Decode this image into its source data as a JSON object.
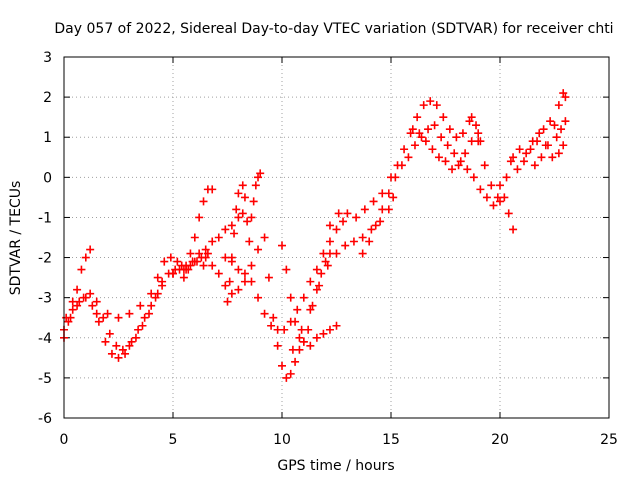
{
  "chart_data": {
    "type": "scatter",
    "title": "Day 057 of 2022, Sidereal Day-to-day VTEC variation (SDTVAR) for receiver chti",
    "xlabel": "GPS time / hours",
    "ylabel": "SDTVAR / TECUs",
    "xlim": [
      0,
      25
    ],
    "ylim": [
      -6,
      3
    ],
    "xticks": [
      "0",
      "5",
      "10",
      "15",
      "20",
      "25"
    ],
    "yticks": [
      "-6",
      "-5",
      "-4",
      "-3",
      "-2",
      "-1",
      "0",
      "1",
      "2",
      "3"
    ],
    "grid": true,
    "legend": "none",
    "marker": "+",
    "series": [
      {
        "color": "#ff0000",
        "points": [
          [
            0.0,
            -4.0
          ],
          [
            0.2,
            -3.6
          ],
          [
            0.4,
            -3.1
          ],
          [
            0.6,
            -2.8
          ],
          [
            0.8,
            -2.3
          ],
          [
            1.0,
            -2.0
          ],
          [
            1.2,
            -1.8
          ],
          [
            0.0,
            -3.8
          ],
          [
            0.3,
            -3.5
          ],
          [
            0.6,
            -3.2
          ],
          [
            0.9,
            -3.0
          ],
          [
            1.2,
            -2.9
          ],
          [
            1.5,
            -3.1
          ],
          [
            1.8,
            -3.5
          ],
          [
            2.1,
            -3.9
          ],
          [
            2.4,
            -4.2
          ],
          [
            2.7,
            -4.3
          ],
          [
            3.0,
            -4.2
          ],
          [
            3.3,
            -4.0
          ],
          [
            3.6,
            -3.7
          ],
          [
            3.9,
            -3.4
          ],
          [
            4.2,
            -3.0
          ],
          [
            4.5,
            -2.7
          ],
          [
            4.8,
            -2.4
          ],
          [
            5.1,
            -2.3
          ],
          [
            5.4,
            -2.2
          ],
          [
            5.7,
            -2.3
          ],
          [
            6.0,
            -2.1
          ],
          [
            6.3,
            -2.0
          ],
          [
            6.6,
            -1.9
          ],
          [
            0.1,
            -3.5
          ],
          [
            0.4,
            -3.3
          ],
          [
            0.7,
            -3.1
          ],
          [
            1.0,
            -3.0
          ],
          [
            1.3,
            -3.2
          ],
          [
            1.6,
            -3.6
          ],
          [
            1.9,
            -4.1
          ],
          [
            2.2,
            -4.4
          ],
          [
            2.5,
            -4.5
          ],
          [
            2.8,
            -4.4
          ],
          [
            3.1,
            -4.1
          ],
          [
            3.4,
            -3.8
          ],
          [
            3.7,
            -3.5
          ],
          [
            4.0,
            -3.2
          ],
          [
            4.3,
            -2.9
          ],
          [
            1.5,
            -3.4
          ],
          [
            2.0,
            -3.4
          ],
          [
            2.5,
            -3.5
          ],
          [
            3.0,
            -3.4
          ],
          [
            3.5,
            -3.2
          ],
          [
            4.0,
            -2.9
          ],
          [
            4.5,
            -2.6
          ],
          [
            5.0,
            -2.4
          ],
          [
            5.5,
            -2.5
          ],
          [
            4.3,
            -2.5
          ],
          [
            4.6,
            -2.1
          ],
          [
            4.9,
            -2.0
          ],
          [
            5.2,
            -2.1
          ],
          [
            5.5,
            -2.3
          ],
          [
            5.8,
            -2.2
          ],
          [
            6.1,
            -2.1
          ],
          [
            6.4,
            -2.2
          ],
          [
            5.6,
            -2.3
          ],
          [
            5.8,
            -1.9
          ],
          [
            6.0,
            -1.5
          ],
          [
            6.2,
            -1.0
          ],
          [
            6.4,
            -0.6
          ],
          [
            6.6,
            -0.3
          ],
          [
            6.8,
            -0.3
          ],
          [
            5.0,
            -2.4
          ],
          [
            5.3,
            -2.3
          ],
          [
            5.6,
            -2.2
          ],
          [
            5.9,
            -2.1
          ],
          [
            6.2,
            -1.9
          ],
          [
            6.5,
            -1.8
          ],
          [
            6.8,
            -1.6
          ],
          [
            7.1,
            -1.5
          ],
          [
            7.4,
            -1.3
          ],
          [
            7.7,
            -1.2
          ],
          [
            8.0,
            -1.0
          ],
          [
            8.2,
            -0.9
          ],
          [
            6.5,
            -2.0
          ],
          [
            6.8,
            -2.2
          ],
          [
            7.1,
            -2.4
          ],
          [
            7.4,
            -2.7
          ],
          [
            7.7,
            -2.9
          ],
          [
            8.0,
            -2.8
          ],
          [
            8.3,
            -2.6
          ],
          [
            8.6,
            -2.2
          ],
          [
            8.9,
            -1.8
          ],
          [
            7.5,
            -3.1
          ],
          [
            7.6,
            -2.6
          ],
          [
            7.7,
            -2.0
          ],
          [
            7.8,
            -1.4
          ],
          [
            7.9,
            -0.8
          ],
          [
            8.0,
            -0.4
          ],
          [
            8.2,
            -0.2
          ],
          [
            8.3,
            -0.5
          ],
          [
            8.4,
            -1.1
          ],
          [
            8.5,
            -1.6
          ],
          [
            8.6,
            -1.0
          ],
          [
            8.7,
            -0.6
          ],
          [
            8.8,
            -0.2
          ],
          [
            8.9,
            0.0
          ],
          [
            9.0,
            0.1
          ],
          [
            7.4,
            -2.0
          ],
          [
            7.7,
            -2.1
          ],
          [
            8.0,
            -2.3
          ],
          [
            8.3,
            -2.4
          ],
          [
            8.6,
            -2.6
          ],
          [
            8.9,
            -3.0
          ],
          [
            9.2,
            -3.4
          ],
          [
            9.5,
            -3.7
          ],
          [
            9.8,
            -3.8
          ],
          [
            10.1,
            -3.8
          ],
          [
            10.4,
            -3.6
          ],
          [
            10.7,
            -3.3
          ],
          [
            11.0,
            -3.0
          ],
          [
            11.3,
            -2.6
          ],
          [
            11.6,
            -2.3
          ],
          [
            11.9,
            -1.9
          ],
          [
            12.2,
            -1.6
          ],
          [
            12.5,
            -1.3
          ],
          [
            12.8,
            -1.1
          ],
          [
            9.2,
            -1.5
          ],
          [
            9.4,
            -2.5
          ],
          [
            9.6,
            -3.5
          ],
          [
            9.8,
            -4.2
          ],
          [
            10.0,
            -4.7
          ],
          [
            10.2,
            -5.0
          ],
          [
            10.4,
            -4.9
          ],
          [
            10.6,
            -4.6
          ],
          [
            10.8,
            -4.3
          ],
          [
            11.0,
            -4.1
          ],
          [
            11.2,
            -3.8
          ],
          [
            11.4,
            -3.2
          ],
          [
            11.6,
            -2.8
          ],
          [
            11.8,
            -2.4
          ],
          [
            12.0,
            -2.1
          ],
          [
            12.2,
            -1.9
          ],
          [
            10.0,
            -1.7
          ],
          [
            10.2,
            -2.3
          ],
          [
            10.4,
            -3.0
          ],
          [
            10.6,
            -3.6
          ],
          [
            10.8,
            -4.0
          ],
          [
            11.0,
            -4.1
          ],
          [
            11.3,
            -4.2
          ],
          [
            11.6,
            -4.0
          ],
          [
            11.9,
            -3.9
          ],
          [
            12.2,
            -3.8
          ],
          [
            12.5,
            -3.7
          ],
          [
            10.5,
            -4.3
          ],
          [
            10.9,
            -3.8
          ],
          [
            11.3,
            -3.3
          ],
          [
            11.7,
            -2.7
          ],
          [
            12.1,
            -2.2
          ],
          [
            12.5,
            -1.9
          ],
          [
            12.9,
            -1.7
          ],
          [
            13.3,
            -1.6
          ],
          [
            13.7,
            -1.5
          ],
          [
            14.1,
            -1.3
          ],
          [
            14.5,
            -1.1
          ],
          [
            14.9,
            -0.8
          ],
          [
            15.1,
            -0.5
          ],
          [
            12.2,
            -1.2
          ],
          [
            12.6,
            -0.9
          ],
          [
            13.0,
            -0.9
          ],
          [
            13.4,
            -1.0
          ],
          [
            13.8,
            -0.8
          ],
          [
            14.2,
            -0.6
          ],
          [
            14.6,
            -0.4
          ],
          [
            15.0,
            0.0
          ],
          [
            15.3,
            0.3
          ],
          [
            15.6,
            0.7
          ],
          [
            15.9,
            1.1
          ],
          [
            16.2,
            1.5
          ],
          [
            16.5,
            1.8
          ],
          [
            16.8,
            1.9
          ],
          [
            17.1,
            1.8
          ],
          [
            17.4,
            1.5
          ],
          [
            17.7,
            1.2
          ],
          [
            18.0,
            1.0
          ],
          [
            18.3,
            1.1
          ],
          [
            18.6,
            1.4
          ],
          [
            18.9,
            1.3
          ],
          [
            19.1,
            0.9
          ],
          [
            13.7,
            -1.9
          ],
          [
            14.0,
            -1.6
          ],
          [
            14.3,
            -1.2
          ],
          [
            14.6,
            -0.8
          ],
          [
            14.9,
            -0.4
          ],
          [
            15.2,
            0.0
          ],
          [
            15.5,
            0.3
          ],
          [
            15.8,
            0.5
          ],
          [
            16.1,
            0.8
          ],
          [
            16.4,
            1.0
          ],
          [
            16.7,
            1.2
          ],
          [
            17.0,
            1.3
          ],
          [
            17.3,
            1.0
          ],
          [
            17.6,
            0.8
          ],
          [
            17.9,
            0.6
          ],
          [
            18.2,
            0.4
          ],
          [
            18.5,
            0.2
          ],
          [
            18.8,
            0.0
          ],
          [
            19.1,
            -0.3
          ],
          [
            19.4,
            -0.5
          ],
          [
            19.7,
            -0.7
          ],
          [
            20.0,
            -0.6
          ],
          [
            16.0,
            1.2
          ],
          [
            16.3,
            1.1
          ],
          [
            16.6,
            0.9
          ],
          [
            16.9,
            0.7
          ],
          [
            17.2,
            0.5
          ],
          [
            17.5,
            0.4
          ],
          [
            17.8,
            0.2
          ],
          [
            18.1,
            0.3
          ],
          [
            18.4,
            0.6
          ],
          [
            18.7,
            0.9
          ],
          [
            19.0,
            1.1
          ],
          [
            18.7,
            1.5
          ],
          [
            19.0,
            0.9
          ],
          [
            19.3,
            0.3
          ],
          [
            19.6,
            -0.2
          ],
          [
            19.9,
            -0.5
          ],
          [
            20.2,
            -0.5
          ],
          [
            20.4,
            -0.9
          ],
          [
            20.6,
            -1.3
          ],
          [
            20.0,
            -0.2
          ],
          [
            20.3,
            0.0
          ],
          [
            20.6,
            0.5
          ],
          [
            20.9,
            0.7
          ],
          [
            21.2,
            0.6
          ],
          [
            21.5,
            0.9
          ],
          [
            21.8,
            1.1
          ],
          [
            22.1,
            0.8
          ],
          [
            22.4,
            0.5
          ],
          [
            22.7,
            0.6
          ],
          [
            22.9,
            0.8
          ],
          [
            20.5,
            0.4
          ],
          [
            20.8,
            0.2
          ],
          [
            21.1,
            0.4
          ],
          [
            21.4,
            0.7
          ],
          [
            21.7,
            0.9
          ],
          [
            22.0,
            1.2
          ],
          [
            22.3,
            1.4
          ],
          [
            22.6,
            1.0
          ],
          [
            22.8,
            1.2
          ],
          [
            23.0,
            1.4
          ],
          [
            21.6,
            0.3
          ],
          [
            21.9,
            0.5
          ],
          [
            22.2,
            0.8
          ],
          [
            22.5,
            1.3
          ],
          [
            22.7,
            1.8
          ],
          [
            22.9,
            2.1
          ],
          [
            23.0,
            2.0
          ]
        ]
      }
    ]
  }
}
